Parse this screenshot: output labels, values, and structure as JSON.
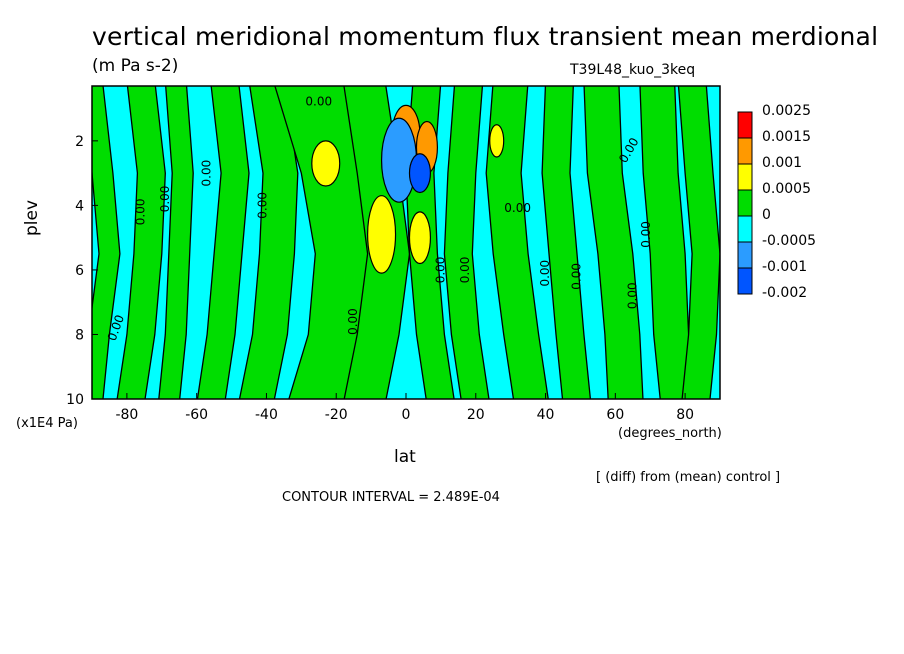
{
  "chart_data": {
    "type": "heatmap",
    "title": "vertical meridional momentum flux transient mean merdional",
    "subtitle": "(m Pa s-2)",
    "run_name": "T39L48_kuo_3keq",
    "xlabel": "lat",
    "x_units": "(degrees_north)",
    "ylabel": "plev",
    "y_units": "(x1E4 Pa)",
    "xlim": [
      -90,
      90
    ],
    "ylim": [
      10,
      0.3
    ],
    "x_ticks": [
      "-80",
      "-60",
      "-40",
      "-20",
      "0",
      "20",
      "40",
      "60",
      "80"
    ],
    "y_ticks": [
      "2",
      "4",
      "6",
      "8",
      "10"
    ],
    "note": "[ (diff) from (mean) control ]",
    "contour_interval": "CONTOUR INTERVAL = 2.489E-04",
    "contour_label": "0.00",
    "colorbar": [
      {
        "label": "0.0025",
        "color": "#ff0000"
      },
      {
        "label": "0.0015",
        "color": "#ff9900"
      },
      {
        "label": "0.001",
        "color": "#ffff00"
      },
      {
        "label": "0.0005",
        "color": "#00dd00"
      },
      {
        "label": "0",
        "color": "#00ffff"
      },
      {
        "label": "-0.0005",
        "color": "#2b9cff"
      },
      {
        "label": "-0.001",
        "color": "#0055ff"
      },
      {
        "label": "-0.002",
        "color": null
      }
    ],
    "green_bands": [
      {
        "name": "band-1",
        "lats": [
          -90,
          -87,
          -85,
          -88,
          -90
        ]
      },
      {
        "name": "band-2",
        "lats": [
          -76,
          -73,
          -74,
          -76,
          -79
        ]
      },
      {
        "name": "band-3",
        "lats": [
          -66,
          -64,
          -65,
          -66,
          -68
        ]
      },
      {
        "name": "band-4",
        "lats": [
          -52,
          -49,
          -51,
          -53,
          -56
        ]
      },
      {
        "name": "band-5",
        "lats": [
          -40,
          -36,
          -37,
          -39,
          -43
        ]
      },
      {
        "name": "band-6",
        "lats": [
          -28,
          -20,
          -16,
          -18,
          -24
        ]
      },
      {
        "name": "band-7",
        "lats": [
          -12,
          -8,
          -5,
          -8,
          -12
        ]
      },
      {
        "name": "band-8",
        "lats": [
          6,
          4,
          5,
          7,
          10
        ]
      },
      {
        "name": "band-9",
        "lats": [
          18,
          16,
          15,
          17,
          20
        ]
      },
      {
        "name": "band-10",
        "lats": [
          30,
          28,
          30,
          33,
          36
        ]
      },
      {
        "name": "band-11",
        "lats": [
          44,
          43,
          45,
          47,
          49
        ]
      },
      {
        "name": "band-12",
        "lats": [
          56,
          57,
          60,
          62,
          63
        ]
      },
      {
        "name": "band-13",
        "lats": [
          72,
          73,
          75,
          76,
          78
        ]
      },
      {
        "name": "band-14",
        "lats": [
          82,
          84,
          86,
          85,
          83
        ]
      }
    ],
    "band_widths": [
      3,
      4,
      3,
      4,
      5,
      10,
      6,
      4,
      4,
      5,
      4,
      5,
      5,
      4
    ],
    "band_levels": [
      0.5,
      3,
      5.5,
      8,
      10
    ],
    "extremes": [
      {
        "name": "pos-max-1",
        "lat": 0,
        "plev": 1.8,
        "w": 4,
        "h": 0.9,
        "color": "#ff9900"
      },
      {
        "name": "pos-max-2",
        "lat": 6,
        "plev": 2.2,
        "w": 3,
        "h": 0.8,
        "color": "#ff9900"
      },
      {
        "name": "pos-max-3",
        "lat": -7,
        "plev": 4.9,
        "w": 4,
        "h": 1.2,
        "color": "#ffff00"
      },
      {
        "name": "pos-max-4",
        "lat": 4,
        "plev": 5.0,
        "w": 3,
        "h": 0.8,
        "color": "#ffff00"
      },
      {
        "name": "pos-max-5",
        "lat": -23,
        "plev": 2.7,
        "w": 4,
        "h": 0.7,
        "color": "#ffff00"
      },
      {
        "name": "pos-max-6",
        "lat": 26,
        "plev": 2.0,
        "w": 2,
        "h": 0.5,
        "color": "#ffff00"
      },
      {
        "name": "neg-min-1",
        "lat": -2,
        "plev": 2.6,
        "w": 5,
        "h": 1.3,
        "color": "#2b9cff"
      },
      {
        "name": "neg-min-2",
        "lat": 4,
        "plev": 3.0,
        "w": 3,
        "h": 0.6,
        "color": "#0055ff"
      }
    ]
  }
}
